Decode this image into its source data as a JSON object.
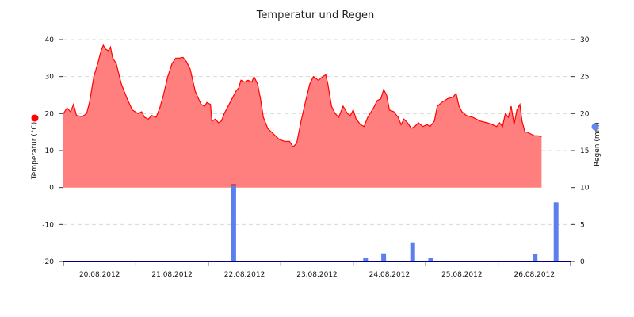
{
  "chart_data": {
    "type": "area",
    "title": "Temperatur und Regen",
    "y_left": {
      "label": "Temperatur (°C)",
      "ticks": [
        "40",
        "30",
        "20",
        "10",
        "0",
        "-10",
        "-20"
      ],
      "range": [
        -20,
        40
      ],
      "marker_color": "#ff0000"
    },
    "y_right": {
      "label": "Regen (mm)",
      "ticks": [
        "30",
        "25",
        "20",
        "15",
        "10",
        "5",
        "0"
      ],
      "range": [
        0,
        30
      ],
      "marker_color": "#6688ee"
    },
    "x": {
      "categories": [
        "20.08.2012",
        "21.08.2012",
        "22.08.2012",
        "23.08.2012",
        "24.08.2012",
        "25.08.2012",
        "26.08.2012"
      ],
      "range_days": [
        0,
        7
      ]
    },
    "grid": true,
    "colors": {
      "temperature_fill": "#ff7f7f",
      "temperature_line": "#ff0000",
      "rain_bar": "#5b7fee",
      "rain_bar_highlight": "#c0506a",
      "axis": "#000080"
    },
    "series": [
      {
        "type": "area",
        "axis": "left",
        "points": [
          [
            0.0,
            20.0
          ],
          [
            0.05,
            21.5
          ],
          [
            0.1,
            20.5
          ],
          [
            0.14,
            22.5
          ],
          [
            0.18,
            19.5
          ],
          [
            0.26,
            19.2
          ],
          [
            0.32,
            20.0
          ],
          [
            0.36,
            23.0
          ],
          [
            0.42,
            30.0
          ],
          [
            0.48,
            34.0
          ],
          [
            0.52,
            37.0
          ],
          [
            0.55,
            38.5
          ],
          [
            0.58,
            37.5
          ],
          [
            0.62,
            37.0
          ],
          [
            0.65,
            38.0
          ],
          [
            0.68,
            35.0
          ],
          [
            0.73,
            33.5
          ],
          [
            0.8,
            28.0
          ],
          [
            0.88,
            24.0
          ],
          [
            0.95,
            21.0
          ],
          [
            1.03,
            20.0
          ],
          [
            1.08,
            20.5
          ],
          [
            1.12,
            19.0
          ],
          [
            1.17,
            18.5
          ],
          [
            1.22,
            19.5
          ],
          [
            1.28,
            19.0
          ],
          [
            1.33,
            21.5
          ],
          [
            1.38,
            25.0
          ],
          [
            1.44,
            30.0
          ],
          [
            1.5,
            33.5
          ],
          [
            1.55,
            35.0
          ],
          [
            1.6,
            35.0
          ],
          [
            1.65,
            35.2
          ],
          [
            1.7,
            34.0
          ],
          [
            1.75,
            32.0
          ],
          [
            1.82,
            26.0
          ],
          [
            1.9,
            22.5
          ],
          [
            1.95,
            22.0
          ],
          [
            1.98,
            23.0
          ],
          [
            2.03,
            22.5
          ],
          [
            2.05,
            18.0
          ],
          [
            2.1,
            18.5
          ],
          [
            2.14,
            17.5
          ],
          [
            2.18,
            18.0
          ],
          [
            2.22,
            20.0
          ],
          [
            2.3,
            23.0
          ],
          [
            2.38,
            26.0
          ],
          [
            2.42,
            27.0
          ],
          [
            2.45,
            29.0
          ],
          [
            2.5,
            28.5
          ],
          [
            2.55,
            29.0
          ],
          [
            2.6,
            28.5
          ],
          [
            2.63,
            30.0
          ],
          [
            2.68,
            28.0
          ],
          [
            2.72,
            24.0
          ],
          [
            2.76,
            19.0
          ],
          [
            2.82,
            16.0
          ],
          [
            2.9,
            14.5
          ],
          [
            2.98,
            13.0
          ],
          [
            3.05,
            12.5
          ],
          [
            3.12,
            12.5
          ],
          [
            3.17,
            11.0
          ],
          [
            3.22,
            12.0
          ],
          [
            3.28,
            18.0
          ],
          [
            3.35,
            24.0
          ],
          [
            3.4,
            28.0
          ],
          [
            3.45,
            30.0
          ],
          [
            3.52,
            29.0
          ],
          [
            3.58,
            30.0
          ],
          [
            3.62,
            30.5
          ],
          [
            3.65,
            28.0
          ],
          [
            3.7,
            22.0
          ],
          [
            3.75,
            20.0
          ],
          [
            3.8,
            19.0
          ],
          [
            3.86,
            22.0
          ],
          [
            3.92,
            20.0
          ],
          [
            3.96,
            19.5
          ],
          [
            4.0,
            21.0
          ],
          [
            4.04,
            18.5
          ],
          [
            4.1,
            17.0
          ],
          [
            4.15,
            16.5
          ],
          [
            4.2,
            19.0
          ],
          [
            4.28,
            21.5
          ],
          [
            4.33,
            23.5
          ],
          [
            4.38,
            24.0
          ],
          [
            4.42,
            26.5
          ],
          [
            4.46,
            25.0
          ],
          [
            4.5,
            21.0
          ],
          [
            4.56,
            20.5
          ],
          [
            4.62,
            19.0
          ],
          [
            4.66,
            17.0
          ],
          [
            4.7,
            18.5
          ],
          [
            4.75,
            17.5
          ],
          [
            4.8,
            16.0
          ],
          [
            4.85,
            16.5
          ],
          [
            4.9,
            17.5
          ],
          [
            4.96,
            16.5
          ],
          [
            5.02,
            17.0
          ],
          [
            5.06,
            16.5
          ],
          [
            5.12,
            18.0
          ],
          [
            5.16,
            22.0
          ],
          [
            5.22,
            23.0
          ],
          [
            5.3,
            24.0
          ],
          [
            5.38,
            24.5
          ],
          [
            5.42,
            25.5
          ],
          [
            5.46,
            22.0
          ],
          [
            5.5,
            20.5
          ],
          [
            5.56,
            19.5
          ],
          [
            5.65,
            19.0
          ],
          [
            5.75,
            18.0
          ],
          [
            5.85,
            17.5
          ],
          [
            5.92,
            17.0
          ],
          [
            5.98,
            16.5
          ],
          [
            6.02,
            17.5
          ],
          [
            6.06,
            16.5
          ],
          [
            6.1,
            20.0
          ],
          [
            6.14,
            19.0
          ],
          [
            6.18,
            22.0
          ],
          [
            6.22,
            17.0
          ],
          [
            6.26,
            21.0
          ],
          [
            6.3,
            22.5
          ],
          [
            6.33,
            18.0
          ],
          [
            6.37,
            15.0
          ],
          [
            6.4,
            15.0
          ],
          [
            6.45,
            14.5
          ],
          [
            6.5,
            14.0
          ],
          [
            6.55,
            14.0
          ],
          [
            6.6,
            13.8
          ]
        ]
      },
      {
        "type": "bar",
        "axis": "right",
        "points": [
          [
            2.35,
            10.5
          ],
          [
            4.17,
            0.5
          ],
          [
            4.42,
            1.1
          ],
          [
            4.82,
            2.6
          ],
          [
            5.07,
            0.5
          ],
          [
            6.51,
            1.0
          ],
          [
            6.8,
            8.0
          ]
        ]
      }
    ]
  }
}
